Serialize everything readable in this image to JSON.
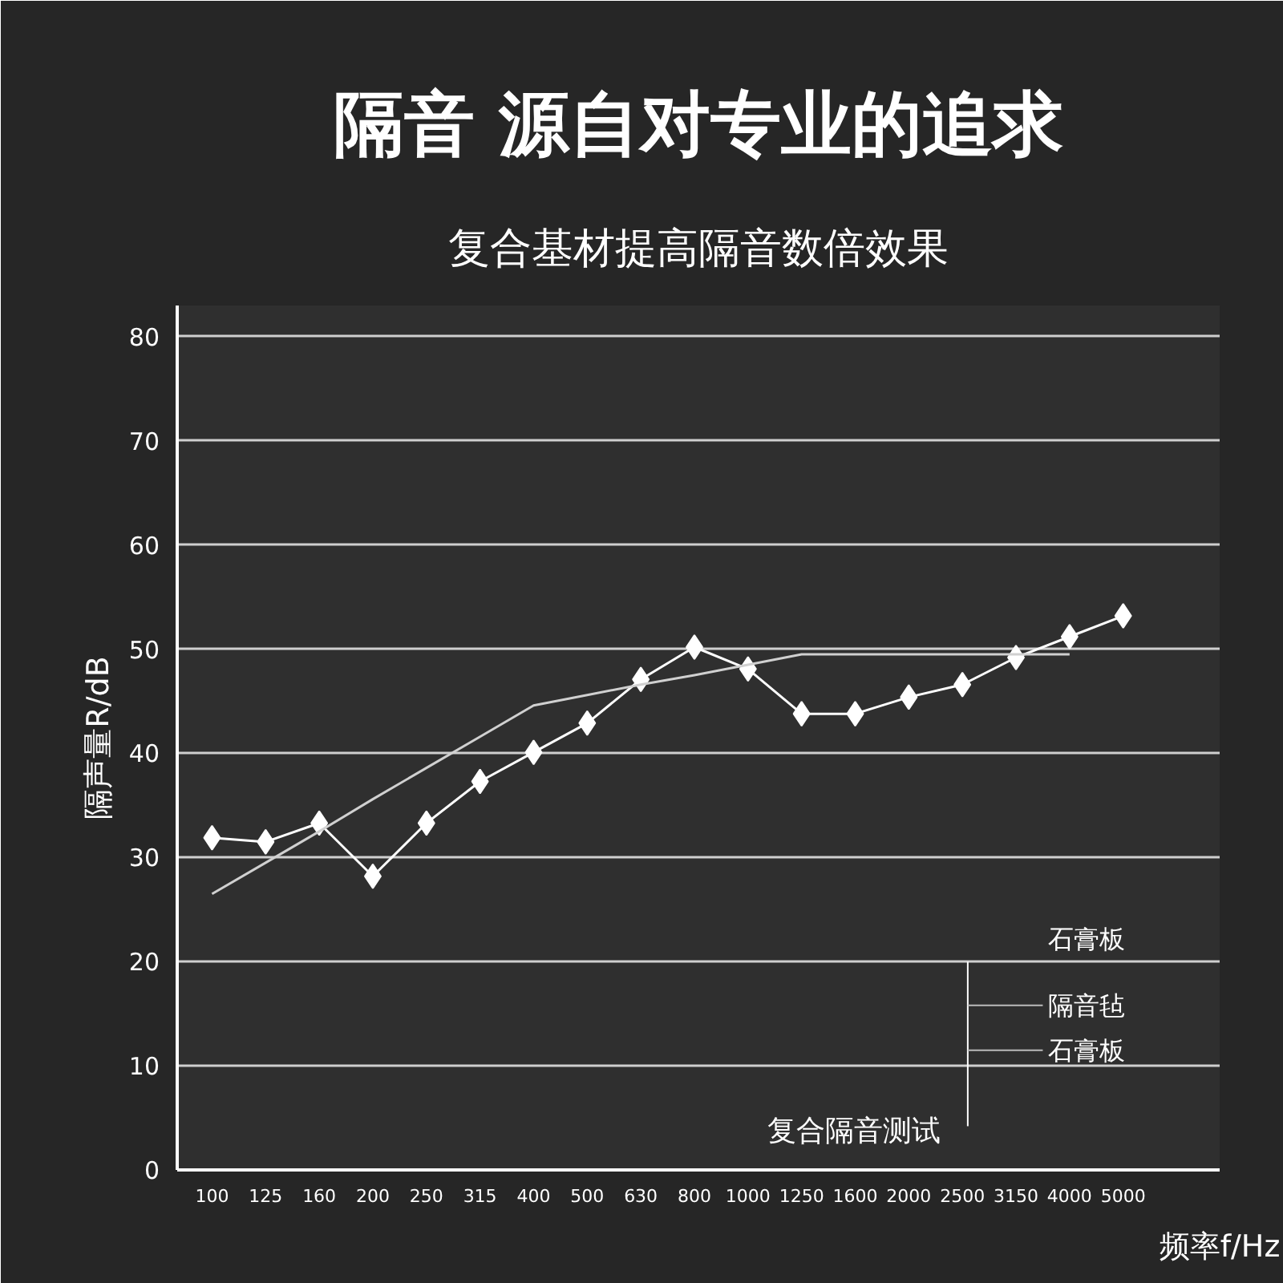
{
  "chart_data": {
    "type": "line",
    "title": "隔音 源自对专业的追求",
    "subtitle": "复合基材提高隔音数倍效果",
    "xlabel": "频率f/Hz",
    "ylabel": "隔声量R/dB",
    "categories": [
      "100",
      "125",
      "160",
      "200",
      "250",
      "315",
      "400",
      "500",
      "630",
      "800",
      "1000",
      "1250",
      "1600",
      "2000",
      "2500",
      "3150",
      "4000",
      "5000"
    ],
    "ylim": [
      0,
      83
    ],
    "yticks": [
      0,
      10,
      20,
      30,
      40,
      50,
      60,
      70,
      80
    ],
    "grid": "y",
    "series": [
      {
        "color": "#ffffff",
        "marker": "diamond",
        "values": [
          31.9,
          31.5,
          33.3,
          28.2,
          33.3,
          37.3,
          40.1,
          42.9,
          47.1,
          50.2,
          48.1,
          43.8,
          43.8,
          45.4,
          46.6,
          49.2,
          51.2,
          53.2
        ]
      },
      {
        "color": "#d0d0d0",
        "marker": "none",
        "values": [
          26.5,
          29.5,
          32.5,
          35.6,
          38.6,
          41.6,
          44.6,
          45.6,
          46.6,
          47.5,
          48.5,
          49.5,
          49.5,
          49.5,
          49.5,
          49.5,
          49.5,
          null
        ]
      }
    ],
    "annotations": [
      "石膏板",
      "隔音毡",
      "石膏板",
      "复合隔音测试"
    ]
  }
}
